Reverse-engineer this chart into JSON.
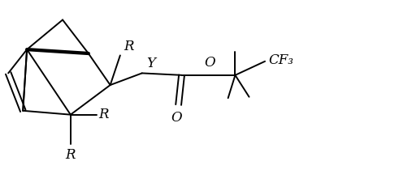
{
  "fig_width": 4.91,
  "fig_height": 2.15,
  "dpi": 100,
  "bg_color": "#ffffff",
  "line_color": "#000000",
  "line_width": 1.4,
  "font_size": 12,
  "labels": {
    "R_top": "R",
    "Y": "Y",
    "R_mid": "R",
    "R_bot": "R",
    "O_double": "O",
    "O_single": "O",
    "CF3": "CF₃"
  }
}
